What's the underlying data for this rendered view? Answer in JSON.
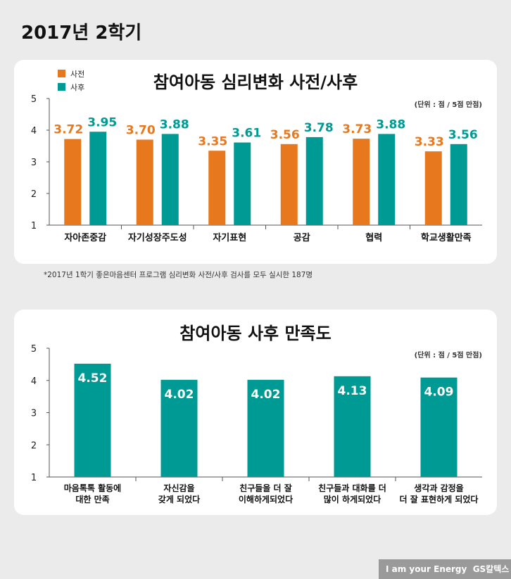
{
  "page_title": "2017년 2학기",
  "footnote": "*2017년 1학기 좋은마음센터 프로그램 심리변화 사전/사후 검사를 모두 실시한 187명",
  "logo": "I am your Energy  GS칼텍스",
  "colors": {
    "pre": "#e8781e",
    "post": "#009a94"
  },
  "chart_data": [
    {
      "type": "bar",
      "title": "참여아동 심리변화 사전/사후",
      "unit_note": "(단위 : 점 / 5점 만점)",
      "ylim": [
        1,
        5
      ],
      "yticks": [
        1,
        2,
        3,
        4,
        5
      ],
      "grid": false,
      "legend": "top-left",
      "categories": [
        "자아존중감",
        "자기성장주도성",
        "자기표현",
        "공감",
        "협력",
        "학교생활만족"
      ],
      "series": [
        {
          "name": "사전",
          "values": [
            3.72,
            3.7,
            3.35,
            3.56,
            3.73,
            3.33
          ]
        },
        {
          "name": "사후",
          "values": [
            3.95,
            3.88,
            3.61,
            3.78,
            3.88,
            3.56
          ]
        }
      ]
    },
    {
      "type": "bar",
      "title": "참여아동 사후 만족도",
      "unit_note": "(단위 : 점 / 5점 만점)",
      "ylim": [
        1,
        5
      ],
      "yticks": [
        1,
        2,
        3,
        4,
        5
      ],
      "grid": false,
      "categories": [
        [
          "마음톡톡 활동에",
          "대한 만족"
        ],
        [
          "자신감을",
          "갖게 되었다"
        ],
        [
          "친구들을 더 잘",
          "이해하게되었다"
        ],
        [
          "친구들과 대화를 더",
          "많이 하게되었다"
        ],
        [
          "생각과 감정을",
          "더 잘 표현하게 되었다"
        ]
      ],
      "series": [
        {
          "values": [
            4.52,
            4.02,
            4.02,
            4.13,
            4.09
          ]
        }
      ]
    }
  ]
}
